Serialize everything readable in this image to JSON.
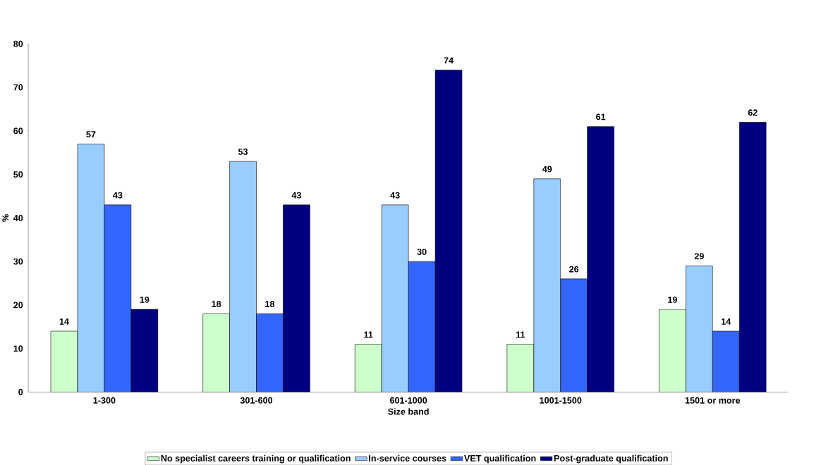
{
  "chart_data": {
    "type": "bar",
    "xlabel": "Size band",
    "ylabel": "%",
    "categories": [
      "1-300",
      "301-600",
      "601-1000",
      "1001-1500",
      "1501 or more"
    ],
    "series": [
      {
        "name": "No specialist careers training or qualification",
        "color": "#ccffcc",
        "values": [
          14,
          18,
          11,
          11,
          19
        ]
      },
      {
        "name": "In-service courses",
        "color": "#99ccff",
        "values": [
          57,
          53,
          43,
          49,
          29
        ]
      },
      {
        "name": "VET qualification",
        "color": "#3366ff",
        "values": [
          43,
          18,
          30,
          26,
          14
        ]
      },
      {
        "name": "Post-graduate qualification",
        "color": "#000080",
        "values": [
          19,
          43,
          74,
          61,
          62
        ]
      }
    ],
    "ylim": [
      0,
      80
    ],
    "yticks": [
      0,
      10,
      20,
      30,
      40,
      50,
      60,
      70,
      80
    ],
    "data_labels": true,
    "legend": "bottom",
    "grid": false
  }
}
